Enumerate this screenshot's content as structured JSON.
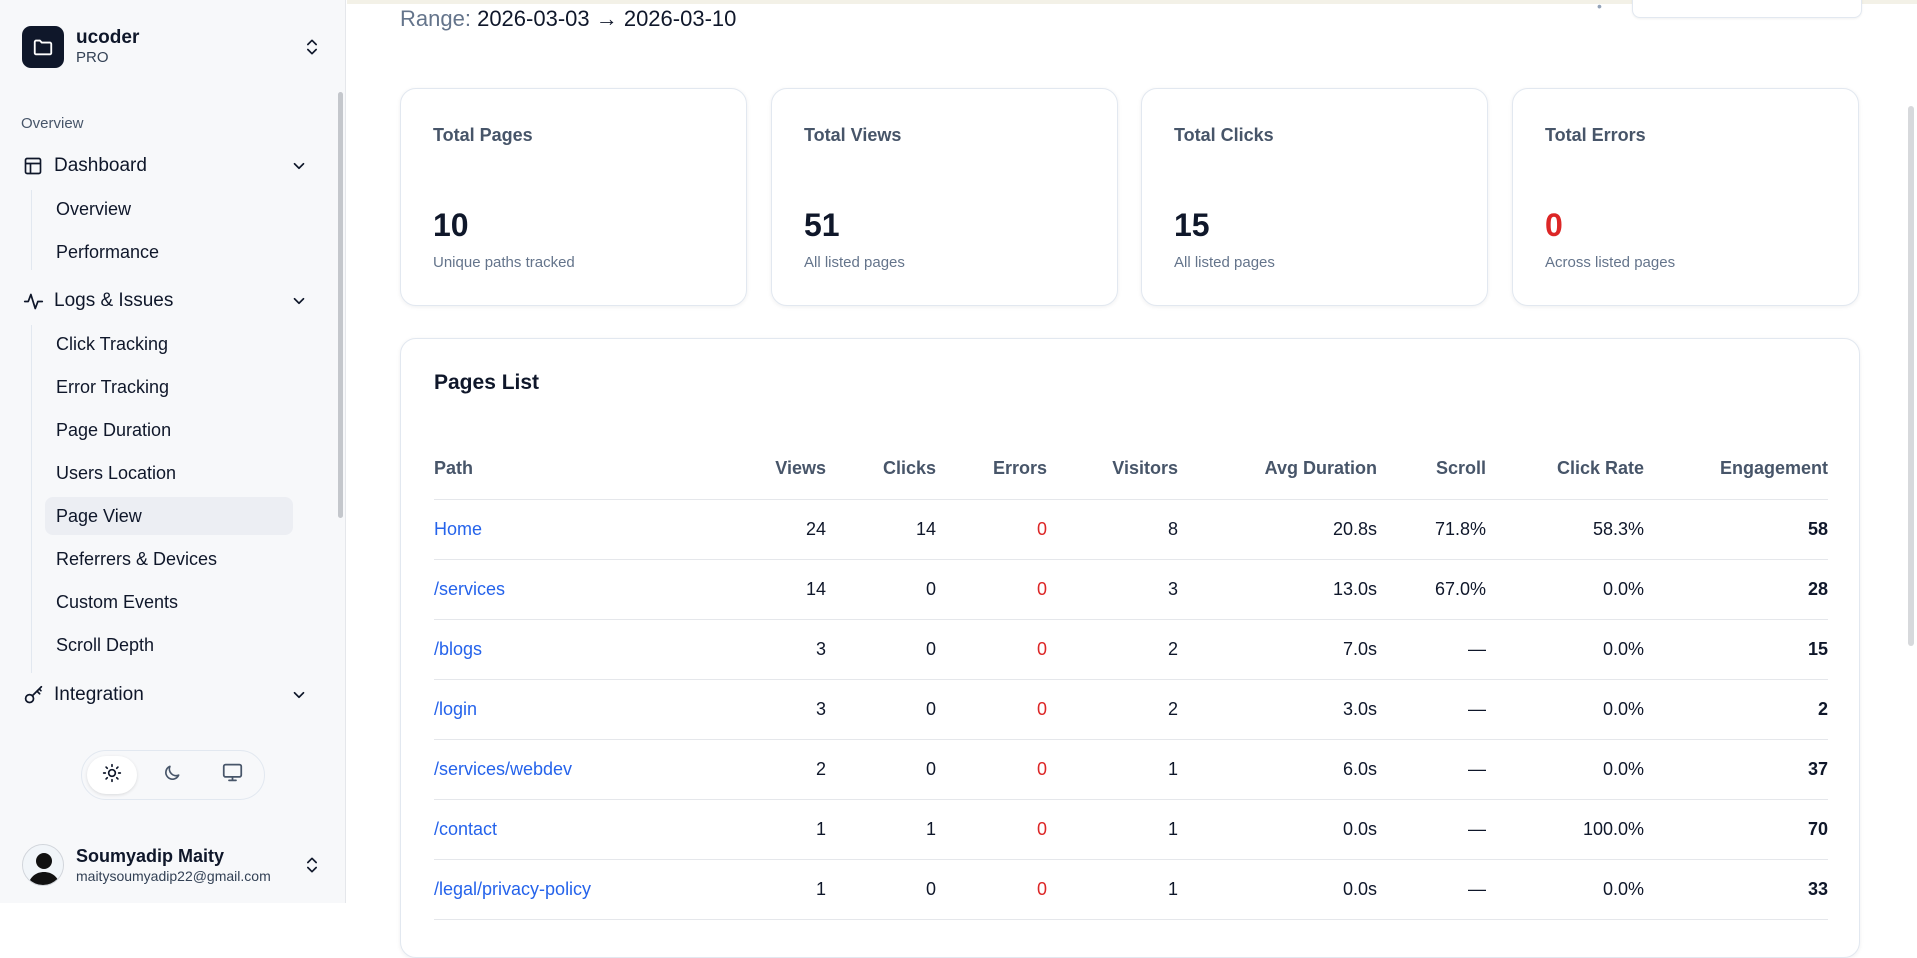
{
  "team": {
    "name": "ucoder",
    "plan": "PRO"
  },
  "sidebar": {
    "group_label": "Overview",
    "dashboard": {
      "label": "Dashboard",
      "items": [
        "Overview",
        "Performance"
      ]
    },
    "logs": {
      "label": "Logs & Issues",
      "items": [
        "Click Tracking",
        "Error Tracking",
        "Page Duration",
        "Users Location",
        "Page View",
        "Referrers & Devices",
        "Custom Events",
        "Scroll Depth"
      ]
    },
    "integration": {
      "label": "Integration"
    }
  },
  "user": {
    "name": "Soumyadip Maity",
    "email": "maitysoumyadip22@gmail.com"
  },
  "range": {
    "label": "Range:",
    "value": "2026-03-03 → 2026-03-10"
  },
  "cards": [
    {
      "title": "Total Pages",
      "value": "10",
      "sub": "Unique paths tracked"
    },
    {
      "title": "Total Views",
      "value": "51",
      "sub": "All listed pages"
    },
    {
      "title": "Total Clicks",
      "value": "15",
      "sub": "All listed pages"
    },
    {
      "title": "Total Errors",
      "value": "0",
      "sub": "Across listed pages"
    }
  ],
  "pages_list": {
    "title": "Pages List",
    "columns": [
      "Path",
      "Views",
      "Clicks",
      "Errors",
      "Visitors",
      "Avg Duration",
      "Scroll",
      "Click Rate",
      "Engagement"
    ],
    "rows": [
      [
        "Home",
        "24",
        "14",
        "0",
        "8",
        "20.8s",
        "71.8%",
        "58.3%",
        "58"
      ],
      [
        "/services",
        "14",
        "0",
        "0",
        "3",
        "13.0s",
        "67.0%",
        "0.0%",
        "28"
      ],
      [
        "/blogs",
        "3",
        "0",
        "0",
        "2",
        "7.0s",
        "—",
        "0.0%",
        "15"
      ],
      [
        "/login",
        "3",
        "0",
        "0",
        "2",
        "3.0s",
        "—",
        "0.0%",
        "2"
      ],
      [
        "/services/webdev",
        "2",
        "0",
        "0",
        "1",
        "6.0s",
        "—",
        "0.0%",
        "37"
      ],
      [
        "/contact",
        "1",
        "1",
        "0",
        "1",
        "0.0s",
        "—",
        "100.0%",
        "70"
      ],
      [
        "/legal/privacy-policy",
        "1",
        "0",
        "0",
        "1",
        "0.0s",
        "—",
        "0.0%",
        "33"
      ]
    ]
  },
  "colors": {
    "link": "#2563eb",
    "error": "#dc2626",
    "sidebar_bg": "#f7f8fa"
  }
}
